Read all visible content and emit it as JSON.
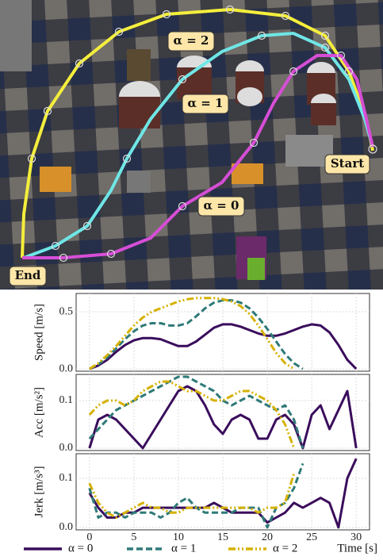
{
  "scene": {
    "labels": [
      "α = 2",
      "α = 1",
      "α = 0",
      "Start",
      "End"
    ]
  },
  "chart_data": [
    {
      "type": "line",
      "ylabel": "Speed [m/s]",
      "xlim": [
        -1.5,
        31.5
      ],
      "xticks": [
        0,
        5,
        10,
        15,
        20,
        25,
        30
      ],
      "ylim": [
        -0.02,
        0.66
      ],
      "yticks": [
        {
          "value": 0,
          "label": "0.0"
        },
        0.5
      ],
      "grid": true,
      "series": [
        {
          "name": "α = 0",
          "color": "#3a0d5c",
          "linestyle": "solid",
          "x": [
            0,
            1,
            2,
            3,
            4,
            5,
            6,
            7,
            8,
            9,
            10,
            11,
            12,
            13,
            14,
            15,
            16,
            17,
            18,
            19,
            20,
            21,
            22,
            23,
            24,
            25,
            26,
            27,
            28,
            29,
            30
          ],
          "values": [
            0,
            0.03,
            0.08,
            0.15,
            0.21,
            0.25,
            0.27,
            0.27,
            0.26,
            0.23,
            0.2,
            0.2,
            0.24,
            0.3,
            0.36,
            0.39,
            0.39,
            0.37,
            0.34,
            0.31,
            0.29,
            0.29,
            0.31,
            0.34,
            0.37,
            0.39,
            0.38,
            0.32,
            0.21,
            0.08,
            0
          ]
        },
        {
          "name": "α = 1",
          "color": "#2f7a78",
          "linestyle": "dashed",
          "x": [
            0,
            1,
            2,
            3,
            4,
            5,
            6,
            7,
            8,
            9,
            10,
            11,
            12,
            13,
            14,
            15,
            16,
            17,
            18,
            19,
            20,
            21,
            22,
            23,
            24
          ],
          "values": [
            0,
            0.04,
            0.1,
            0.18,
            0.26,
            0.33,
            0.38,
            0.4,
            0.4,
            0.38,
            0.38,
            0.4,
            0.46,
            0.53,
            0.58,
            0.6,
            0.6,
            0.58,
            0.53,
            0.45,
            0.35,
            0.24,
            0.13,
            0.05,
            0
          ]
        },
        {
          "name": "α = 2",
          "color": "#d6b100",
          "linestyle": "dashdotdot",
          "x": [
            0,
            1,
            2,
            3,
            4,
            5,
            6,
            7,
            8,
            9,
            10,
            11,
            12,
            13,
            14,
            15,
            16,
            17,
            18,
            19,
            20,
            21,
            22,
            23
          ],
          "values": [
            0,
            0.05,
            0.12,
            0.2,
            0.29,
            0.38,
            0.45,
            0.5,
            0.53,
            0.56,
            0.59,
            0.61,
            0.62,
            0.62,
            0.62,
            0.61,
            0.59,
            0.55,
            0.48,
            0.38,
            0.26,
            0.14,
            0.05,
            0
          ]
        }
      ]
    },
    {
      "type": "line",
      "ylabel": "Acc [m/s²]",
      "xlim": [
        -1.5,
        31.5
      ],
      "xticks": [
        0,
        5,
        10,
        15,
        20,
        25,
        30
      ],
      "ylim": [
        -0.005,
        0.155
      ],
      "yticks": [
        {
          "value": 0,
          "label": "0.0"
        },
        0.1
      ],
      "grid": true,
      "series": [
        {
          "color": "#3a0d5c",
          "linestyle": "solid",
          "x": [
            0,
            1,
            2,
            3,
            4,
            5,
            6,
            7,
            8,
            9,
            10,
            11,
            12,
            13,
            14,
            15,
            16,
            17,
            18,
            19,
            20,
            21,
            22,
            23,
            24,
            25,
            26,
            27,
            28,
            29,
            30
          ],
          "values": [
            0,
            0.06,
            0.07,
            0.06,
            0.04,
            0.02,
            0,
            0.03,
            0.06,
            0.09,
            0.12,
            0.13,
            0.12,
            0.09,
            0.05,
            0.03,
            0.06,
            0.07,
            0.06,
            0.02,
            0.02,
            0.06,
            0.07,
            0.05,
            0,
            0.07,
            0.09,
            0.04,
            0.08,
            0.12,
            0
          ]
        },
        {
          "color": "#2f7a78",
          "linestyle": "dashed",
          "x": [
            0,
            1,
            2,
            3,
            4,
            5,
            6,
            7,
            8,
            9,
            10,
            11,
            12,
            13,
            14,
            15,
            16,
            17,
            18,
            19,
            20,
            21,
            22,
            23,
            24
          ],
          "values": [
            0.02,
            0.04,
            0.06,
            0.08,
            0.09,
            0.1,
            0.11,
            0.12,
            0.13,
            0.14,
            0.15,
            0.15,
            0.14,
            0.13,
            0.12,
            0.1,
            0.09,
            0.1,
            0.11,
            0.1,
            0.09,
            0.08,
            0.09,
            0.06,
            0
          ]
        },
        {
          "color": "#d6b100",
          "linestyle": "dashdotdot",
          "x": [
            0,
            1,
            2,
            3,
            4,
            5,
            6,
            7,
            8,
            9,
            10,
            11,
            12,
            13,
            14,
            15,
            16,
            17,
            18,
            19,
            20,
            21,
            22,
            23
          ],
          "values": [
            0.07,
            0.09,
            0.1,
            0.1,
            0.09,
            0.1,
            0.12,
            0.13,
            0.14,
            0.14,
            0.13,
            0.12,
            0.12,
            0.11,
            0.1,
            0.1,
            0.11,
            0.12,
            0.12,
            0.11,
            0.1,
            0.08,
            0.05,
            0
          ]
        }
      ]
    },
    {
      "type": "line",
      "ylabel": "Jerk [m/s³]",
      "xlabel": "Time [s]",
      "xlim": [
        -1.5,
        31.5
      ],
      "xticks": [
        0,
        5,
        10,
        15,
        20,
        25,
        30
      ],
      "ylim": [
        -0.005,
        0.15
      ],
      "yticks": [
        {
          "value": 0,
          "label": "0.0"
        },
        0.1
      ],
      "grid": true,
      "series": [
        {
          "color": "#3a0d5c",
          "linestyle": "solid",
          "x": [
            0,
            1,
            2,
            3,
            4,
            5,
            6,
            7,
            8,
            9,
            10,
            11,
            12,
            13,
            14,
            15,
            16,
            17,
            18,
            19,
            20,
            21,
            22,
            23,
            24,
            25,
            26,
            27,
            28,
            29,
            30
          ],
          "values": [
            0.07,
            0.04,
            0.02,
            0.02,
            0.03,
            0.03,
            0.04,
            0.04,
            0.04,
            0.04,
            0.04,
            0.04,
            0.04,
            0.04,
            0.05,
            0.04,
            0.03,
            0.03,
            0.03,
            0.03,
            0.01,
            0.02,
            0.03,
            0.05,
            0.04,
            0.05,
            0.06,
            0.05,
            0,
            0.1,
            0.14
          ]
        },
        {
          "color": "#2f7a78",
          "linestyle": "dashed",
          "x": [
            0,
            1,
            2,
            3,
            4,
            5,
            6,
            7,
            8,
            9,
            10,
            11,
            12,
            13,
            14,
            15,
            16,
            17,
            18,
            19,
            20,
            21,
            22,
            23,
            24
          ],
          "values": [
            0.08,
            0.02,
            0.03,
            0.03,
            0.02,
            0.03,
            0.03,
            0.03,
            0.02,
            0.03,
            0.05,
            0.06,
            0.04,
            0.03,
            0.03,
            0.03,
            0.03,
            0.04,
            0.04,
            0.04,
            0,
            0.04,
            0.05,
            0.08,
            0.13
          ]
        },
        {
          "color": "#d6b100",
          "linestyle": "dashdotdot",
          "x": [
            0,
            1,
            2,
            3,
            4,
            5,
            6,
            7,
            8,
            9,
            10,
            11,
            12,
            13,
            14,
            15,
            16,
            17,
            18,
            19,
            20,
            21,
            22,
            23
          ],
          "values": [
            0.09,
            0.05,
            0.03,
            0.02,
            0.03,
            0.04,
            0.05,
            0.04,
            0.04,
            0.03,
            0.03,
            0.04,
            0.04,
            0.04,
            0.04,
            0.04,
            0.04,
            0.04,
            0.04,
            0.03,
            0.04,
            0.04,
            0.05,
            0.11
          ]
        }
      ]
    }
  ]
}
